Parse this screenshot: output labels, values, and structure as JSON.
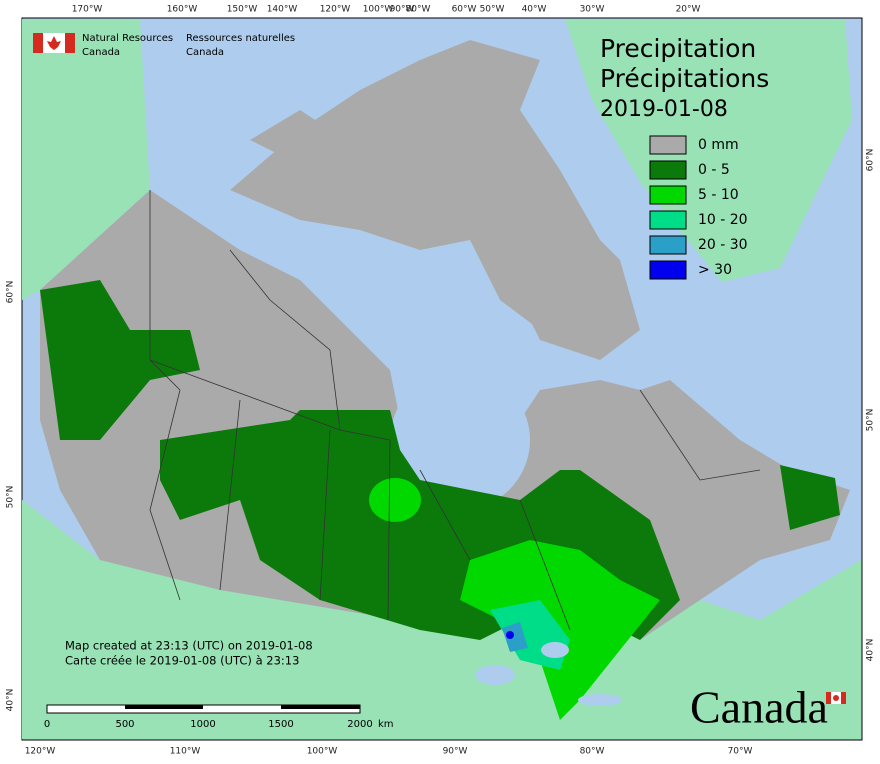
{
  "header": {
    "agency_en": [
      "Natural Resources",
      "Canada"
    ],
    "agency_fr": [
      "Ressources naturelles",
      "Canada"
    ]
  },
  "title": [
    "Precipitation",
    "Précipitations"
  ],
  "date": "2019-01-08",
  "legend": [
    {
      "label": "0 mm",
      "color": "#aaaaaa"
    },
    {
      "label": "0 - 5",
      "color": "#0b7a0b"
    },
    {
      "label": "5 - 10",
      "color": "#00d800"
    },
    {
      "label": "10 - 20",
      "color": "#00dd88"
    },
    {
      "label": "20 - 30",
      "color": "#2aa0c8"
    },
    {
      "label": "> 30",
      "color": "#0000ee"
    }
  ],
  "graticule": {
    "top": [
      "170°W",
      "160°W",
      "150°W",
      "140°W",
      "120°W",
      "100°W",
      "90°W",
      "80°W",
      "60°W",
      "50°W",
      "40°W",
      "30°W",
      "20°W"
    ],
    "bottom": [
      "120°W",
      "110°W",
      "100°W",
      "90°W",
      "80°W",
      "70°W"
    ],
    "left": [
      "60°N",
      "50°N",
      "40°N"
    ],
    "right": [
      "60°N",
      "50°N",
      "40°N"
    ]
  },
  "footer": [
    "Map created at 23:13 (UTC) on 2019-01-08",
    "Carte créée le 2019-01-08 (UTC) à 23:13"
  ],
  "scale": {
    "ticks": [
      0,
      500,
      1000,
      1500,
      2000
    ],
    "unit": "km"
  },
  "wordmark": "Canada"
}
